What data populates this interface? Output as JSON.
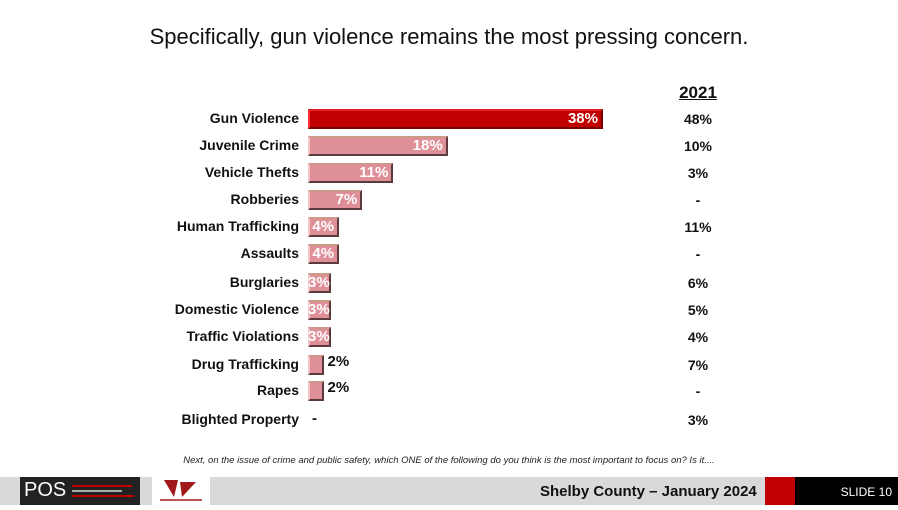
{
  "title": "Specifically, gun violence remains the most pressing concern.",
  "question": "Next, on the issue of crime and public safety, which ONE of the following do you think is the most important to focus on? Is it....",
  "footer": {
    "logo_text": "POS",
    "partner_logo": "The Carter Malone Group LLC",
    "caption": "Shelby County – January 2024",
    "slide": "SLIDE 10"
  },
  "colors": {
    "highlight": "#c00000",
    "bar": "#df8f98",
    "footer_bg": "#d9d9d9"
  },
  "chart_data": {
    "type": "bar",
    "orientation": "horizontal",
    "title": "Specifically, gun violence remains the most pressing concern.",
    "categories": [
      "Gun Violence",
      "Juvenile Crime",
      "Vehicle Thefts",
      "Robberies",
      "Human Trafficking",
      "Assaults",
      "Burglaries",
      "Domestic Violence",
      "Traffic Violations",
      "Drug Trafficking",
      "Rapes",
      "Blighted Property"
    ],
    "values": [
      38,
      18,
      11,
      7,
      4,
      4,
      3,
      3,
      3,
      2,
      2,
      null
    ],
    "value_labels": [
      "38%",
      "18%",
      "11%",
      "7%",
      "4%",
      "4%",
      "3%",
      "3%",
      "3%",
      "2%",
      "2%",
      "-"
    ],
    "comparison_header": "2021",
    "comparison_labels": [
      "48%",
      "10%",
      "3%",
      "-",
      "11%",
      "-",
      "6%",
      "5%",
      "4%",
      "7%",
      "-",
      "3%"
    ],
    "xlim": [
      0,
      38
    ]
  }
}
